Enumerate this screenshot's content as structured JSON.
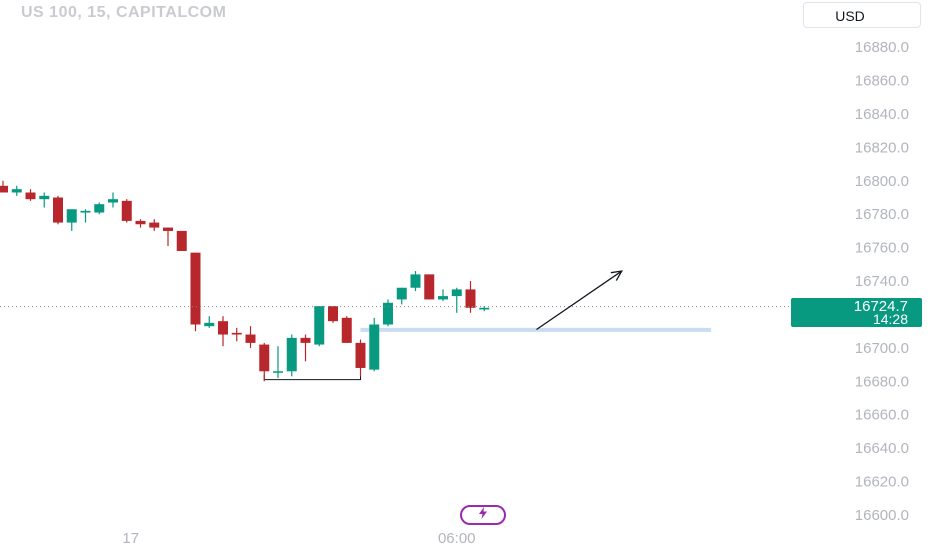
{
  "header": {
    "symbol_title": "US 100, 15, CAPITALCOM",
    "currency": "USD"
  },
  "price_badge": {
    "price": "16724.7",
    "countdown": "14:28"
  },
  "colors": {
    "up": "#089981",
    "down": "#b8272c",
    "zone": "#c9dcf2",
    "tick_text": "#b2b5be",
    "badge": "#089981",
    "flash_icon": "#9c27b0"
  },
  "icons": {
    "flash": "lightning-bolt-icon"
  },
  "chart_data": {
    "type": "candlestick",
    "ylim": [
      16590,
      16905
    ],
    "y_ticks": [
      "16880.0",
      "16860.0",
      "16840.0",
      "16820.0",
      "16800.0",
      "16780.0",
      "16760.0",
      "16740.0",
      "16700.0",
      "16680.0",
      "16660.0",
      "16640.0",
      "16620.0",
      "16600.0"
    ],
    "x_ticks": [
      {
        "label": "17",
        "index": 9
      },
      {
        "label": "06:00",
        "index": 33
      }
    ],
    "candles": [
      {
        "o": 16797,
        "h": 16800,
        "l": 16793,
        "c": 16793
      },
      {
        "o": 16793,
        "h": 16797,
        "l": 16791,
        "c": 16795
      },
      {
        "o": 16793,
        "h": 16795,
        "l": 16788,
        "c": 16789
      },
      {
        "o": 16789,
        "h": 16793,
        "l": 16784,
        "c": 16791
      },
      {
        "o": 16790,
        "h": 16791,
        "l": 16774,
        "c": 16775
      },
      {
        "o": 16775,
        "h": 16782,
        "l": 16770,
        "c": 16783
      },
      {
        "o": 16781,
        "h": 16783,
        "l": 16775,
        "c": 16782
      },
      {
        "o": 16781,
        "h": 16787,
        "l": 16780,
        "c": 16786
      },
      {
        "o": 16787,
        "h": 16793,
        "l": 16784,
        "c": 16789
      },
      {
        "o": 16788,
        "h": 16789,
        "l": 16775,
        "c": 16776
      },
      {
        "o": 16776,
        "h": 16777,
        "l": 16772,
        "c": 16774
      },
      {
        "o": 16775,
        "h": 16777,
        "l": 16770,
        "c": 16772
      },
      {
        "o": 16772,
        "h": 16772,
        "l": 16761,
        "c": 16770
      },
      {
        "o": 16770,
        "h": 16770,
        "l": 16758,
        "c": 16758
      },
      {
        "o": 16757,
        "h": 16757,
        "l": 16710,
        "c": 16714
      },
      {
        "o": 16713,
        "h": 16719,
        "l": 16712,
        "c": 16715
      },
      {
        "o": 16716,
        "h": 16719,
        "l": 16701,
        "c": 16708
      },
      {
        "o": 16709,
        "h": 16712,
        "l": 16704,
        "c": 16708
      },
      {
        "o": 16708,
        "h": 16713,
        "l": 16700,
        "c": 16703
      },
      {
        "o": 16702,
        "h": 16703,
        "l": 16680,
        "c": 16686
      },
      {
        "o": 16686,
        "h": 16701,
        "l": 16682,
        "c": 16686
      },
      {
        "o": 16686,
        "h": 16708,
        "l": 16683,
        "c": 16706
      },
      {
        "o": 16706,
        "h": 16708,
        "l": 16692,
        "c": 16703
      },
      {
        "o": 16702,
        "h": 16725,
        "l": 16701,
        "c": 16725
      },
      {
        "o": 16725,
        "h": 16725,
        "l": 16715,
        "c": 16716
      },
      {
        "o": 16718,
        "h": 16719,
        "l": 16703,
        "c": 16703
      },
      {
        "o": 16703,
        "h": 16705,
        "l": 16683,
        "c": 16688
      },
      {
        "o": 16687,
        "h": 16718,
        "l": 16686,
        "c": 16714
      },
      {
        "o": 16714,
        "h": 16729,
        "l": 16713,
        "c": 16727
      },
      {
        "o": 16729,
        "h": 16736,
        "l": 16726,
        "c": 16736
      },
      {
        "o": 16736,
        "h": 16746,
        "l": 16734,
        "c": 16744
      },
      {
        "o": 16744,
        "h": 16744,
        "l": 16729,
        "c": 16729
      },
      {
        "o": 16729,
        "h": 16735,
        "l": 16728,
        "c": 16731
      },
      {
        "o": 16731,
        "h": 16736,
        "l": 16721,
        "c": 16735
      },
      {
        "o": 16735,
        "h": 16740,
        "l": 16721,
        "c": 16724
      },
      {
        "o": 16723,
        "h": 16725,
        "l": 16722,
        "c": 16724
      }
    ],
    "last_price": 16724.7,
    "annotations": {
      "double_bottom_bracket": {
        "x_index": [
          19,
          26
        ],
        "low": 16681,
        "tick_top": 16684
      },
      "support_zone": {
        "x_from_index": 26,
        "x_to_index": 51.5,
        "y_top": 16712,
        "y_bottom": 16710
      },
      "up_arrow": {
        "from": {
          "x_index": 38.8,
          "y": 16711
        },
        "to": {
          "x_index": 45,
          "y": 16746
        }
      }
    }
  }
}
